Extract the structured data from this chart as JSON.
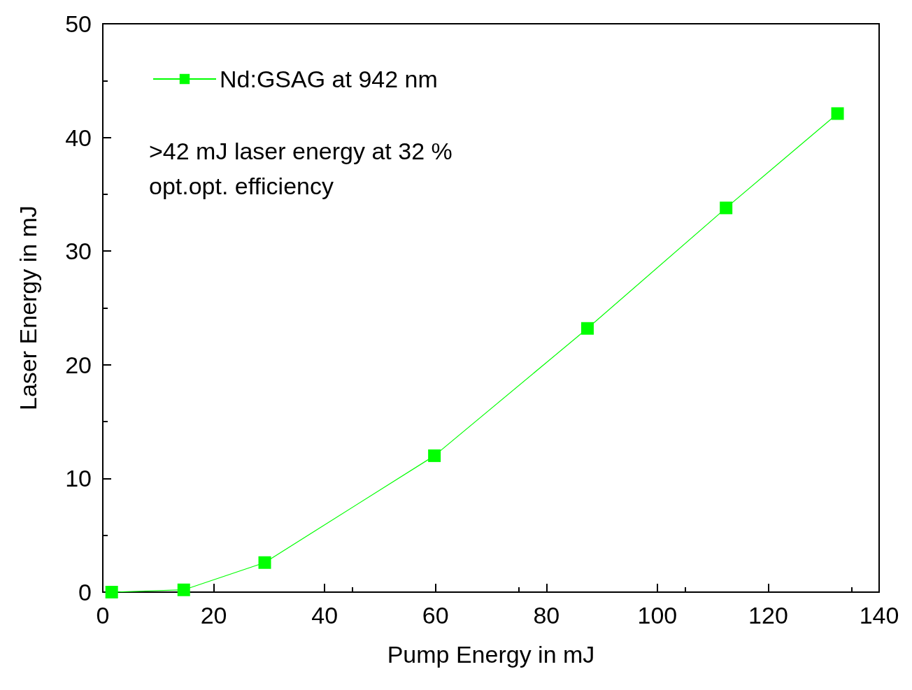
{
  "chart_data": {
    "type": "line",
    "xlabel": "Pump Energy in mJ",
    "ylabel": "Laser Energy in mJ",
    "x": [
      1.6,
      14.6,
      29.2,
      59.8,
      87.4,
      112.4,
      132.5
    ],
    "series": [
      {
        "name": "Nd:GSAG at 942 nm",
        "color": "#00ff00",
        "values": [
          0,
          0.2,
          2.6,
          12.0,
          23.2,
          33.8,
          42.1
        ]
      }
    ],
    "xlim": [
      0,
      140
    ],
    "xticks": [
      0,
      20,
      40,
      60,
      80,
      100,
      120,
      140
    ],
    "ylim": [
      0,
      50
    ],
    "yticks": [
      0,
      10,
      20,
      30,
      40,
      50
    ],
    "marker": "square",
    "line_style": "solid",
    "grid": false,
    "legend": "top left",
    "annotations": [
      ">42 mJ laser energy at 32 %\nopt.opt. efficiency"
    ]
  }
}
